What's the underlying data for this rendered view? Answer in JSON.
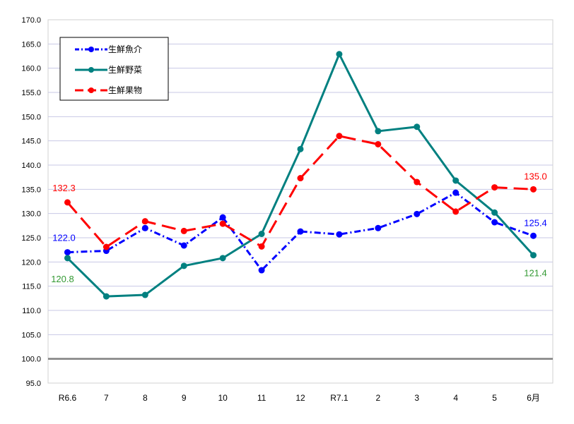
{
  "chart_data": {
    "type": "line",
    "categories": [
      "R6.6",
      "7",
      "8",
      "9",
      "10",
      "11",
      "12",
      "R7.1",
      "2",
      "3",
      "4",
      "5",
      "6月"
    ],
    "ylim": [
      95,
      170
    ],
    "y_ticks": [
      "95.0",
      "100.0",
      "105.0",
      "110.0",
      "115.0",
      "120.0",
      "125.0",
      "130.0",
      "135.0",
      "140.0",
      "145.0",
      "150.0",
      "155.0",
      "160.0",
      "165.0",
      "170.0"
    ],
    "y_tick_values": [
      95,
      100,
      105,
      110,
      115,
      120,
      125,
      130,
      135,
      140,
      145,
      150,
      155,
      160,
      165,
      170
    ],
    "baseline": 100,
    "grid": true,
    "legend_position": "top-left",
    "series": [
      {
        "name": "生鮮魚介",
        "color": "#0000ff",
        "style": "dashdot",
        "values": [
          122.0,
          122.3,
          127.0,
          123.4,
          129.2,
          118.3,
          126.3,
          125.7,
          127.0,
          129.9,
          134.3,
          128.2,
          125.4
        ],
        "labels": [
          {
            "index": 0,
            "text": "122.0"
          },
          {
            "index": 12,
            "text": "125.4"
          }
        ]
      },
      {
        "name": "生鮮野菜",
        "color": "#008080",
        "style": "solid",
        "values": [
          120.8,
          112.9,
          113.2,
          119.2,
          120.8,
          125.8,
          143.3,
          162.9,
          147.0,
          147.9,
          136.8,
          130.2,
          121.4
        ],
        "labels": [
          {
            "index": 0,
            "text": "120.8",
            "color": "#339933"
          },
          {
            "index": 12,
            "text": "121.4",
            "color": "#339933"
          }
        ]
      },
      {
        "name": "生鮮果物",
        "color": "#ff0000",
        "style": "longdash",
        "values": [
          132.3,
          123.1,
          128.4,
          126.4,
          127.9,
          123.2,
          137.3,
          146.0,
          144.3,
          136.5,
          130.4,
          135.4,
          135.0
        ],
        "labels": [
          {
            "index": 0,
            "text": "132.3"
          },
          {
            "index": 12,
            "text": "135.0"
          }
        ]
      }
    ]
  }
}
